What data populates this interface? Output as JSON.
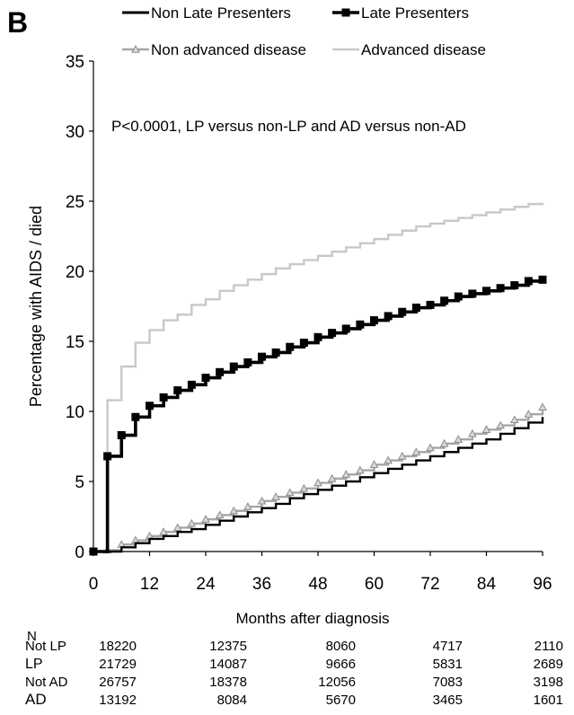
{
  "panel_label": "B",
  "chart_data": {
    "type": "line",
    "subtype": "kaplan-meier step curves",
    "title": "",
    "annotation": "P<0.0001, LP versus non-LP and AD versus non-AD",
    "xlabel": "Months after diagnosis",
    "ylabel": "Percentage with AIDS / died",
    "xlim": [
      0,
      96
    ],
    "ylim": [
      0,
      35
    ],
    "xticks": [
      0,
      12,
      24,
      36,
      48,
      60,
      72,
      84,
      96
    ],
    "yticks": [
      0,
      5,
      10,
      15,
      20,
      25,
      30,
      35
    ],
    "grid": false,
    "legend_position": "top",
    "series": [
      {
        "name": "Non Late Presenters",
        "color": "#000000",
        "marker": "none",
        "x": [
          0,
          3,
          6,
          9,
          12,
          15,
          18,
          21,
          24,
          27,
          30,
          33,
          36,
          39,
          42,
          45,
          48,
          51,
          54,
          57,
          60,
          63,
          66,
          69,
          72,
          75,
          78,
          81,
          84,
          87,
          90,
          93,
          96
        ],
        "y": [
          0,
          0,
          0.3,
          0.6,
          0.9,
          1.1,
          1.4,
          1.6,
          1.9,
          2.2,
          2.5,
          2.8,
          3.1,
          3.4,
          3.8,
          4.1,
          4.4,
          4.7,
          5.0,
          5.3,
          5.6,
          5.9,
          6.2,
          6.5,
          6.8,
          7.1,
          7.4,
          7.7,
          8.0,
          8.4,
          8.8,
          9.2,
          9.6
        ]
      },
      {
        "name": "Late Presenters",
        "color": "#000000",
        "marker": "square",
        "x": [
          0,
          3,
          6,
          9,
          12,
          15,
          18,
          21,
          24,
          27,
          30,
          33,
          36,
          39,
          42,
          45,
          48,
          51,
          54,
          57,
          60,
          63,
          66,
          69,
          72,
          75,
          78,
          81,
          84,
          87,
          90,
          93,
          96
        ],
        "y": [
          0,
          6.8,
          8.3,
          9.6,
          10.4,
          11.0,
          11.5,
          11.9,
          12.4,
          12.8,
          13.2,
          13.5,
          13.9,
          14.2,
          14.6,
          14.9,
          15.3,
          15.6,
          15.9,
          16.2,
          16.5,
          16.8,
          17.1,
          17.4,
          17.6,
          17.9,
          18.2,
          18.4,
          18.6,
          18.8,
          19.0,
          19.3,
          19.4
        ]
      },
      {
        "name": "Non advanced disease",
        "color": "#a6a6a6",
        "marker": "triangle",
        "x": [
          0,
          3,
          6,
          9,
          12,
          15,
          18,
          21,
          24,
          27,
          30,
          33,
          36,
          39,
          42,
          45,
          48,
          51,
          54,
          57,
          60,
          63,
          66,
          69,
          72,
          75,
          78,
          81,
          84,
          87,
          90,
          93,
          96
        ],
        "y": [
          0,
          0.1,
          0.5,
          0.8,
          1.1,
          1.4,
          1.7,
          2.0,
          2.3,
          2.6,
          2.9,
          3.2,
          3.6,
          3.9,
          4.2,
          4.5,
          4.9,
          5.2,
          5.5,
          5.8,
          6.2,
          6.5,
          6.8,
          7.1,
          7.4,
          7.7,
          8.0,
          8.4,
          8.7,
          9.0,
          9.4,
          9.8,
          10.3
        ]
      },
      {
        "name": "Advanced disease",
        "color": "#c8c8c8",
        "marker": "none",
        "x": [
          0,
          3,
          6,
          9,
          12,
          15,
          18,
          21,
          24,
          27,
          30,
          33,
          36,
          39,
          42,
          45,
          48,
          51,
          54,
          57,
          60,
          63,
          66,
          69,
          72,
          75,
          78,
          81,
          84,
          87,
          90,
          93,
          96
        ],
        "y": [
          0,
          10.8,
          13.2,
          14.9,
          15.8,
          16.5,
          16.9,
          17.6,
          18.0,
          18.6,
          19.0,
          19.4,
          19.8,
          20.2,
          20.5,
          20.8,
          21.1,
          21.4,
          21.7,
          22.0,
          22.3,
          22.6,
          22.9,
          23.2,
          23.4,
          23.6,
          23.8,
          24.0,
          24.2,
          24.4,
          24.6,
          24.8,
          24.9
        ]
      }
    ]
  },
  "risk_table": {
    "header": "N",
    "timepoints": [
      0,
      24,
      48,
      72,
      96
    ],
    "rows": [
      {
        "label": "Not LP",
        "values": [
          "18220",
          "12375",
          "8060",
          "4717",
          "2110"
        ]
      },
      {
        "label": "LP",
        "values": [
          "21729",
          "14087",
          "9666",
          "5831",
          "2689"
        ]
      },
      {
        "label": "Not AD",
        "values": [
          "26757",
          "18378",
          "12056",
          "7083",
          "3198"
        ]
      },
      {
        "label": "AD",
        "values": [
          "13192",
          "8084",
          "5670",
          "3465",
          "1601"
        ]
      }
    ]
  }
}
